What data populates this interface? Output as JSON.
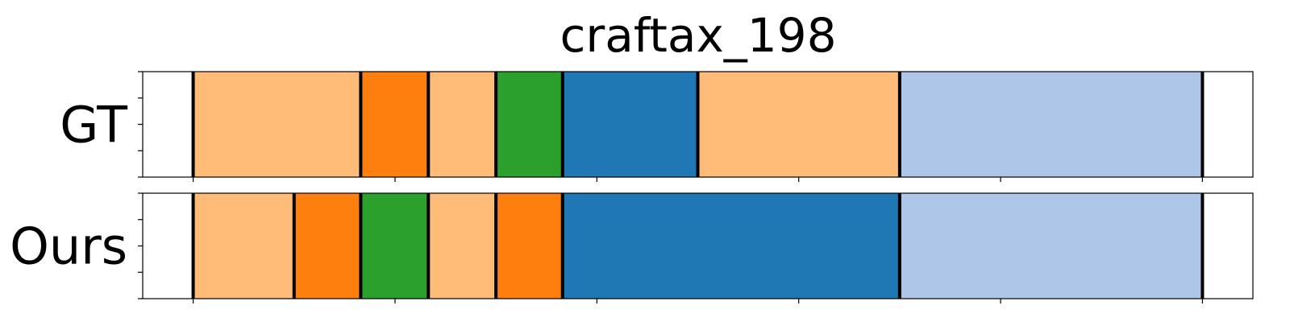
{
  "chart_data": {
    "type": "segmentation_timeline",
    "title": "craftax_198",
    "x_range": [
      0,
      1100
    ],
    "rows": [
      {
        "label": "GT",
        "segments": [
          {
            "start": 0,
            "end": 50,
            "color": "#ffffff"
          },
          {
            "start": 50,
            "end": 216,
            "color": "#ffbb78"
          },
          {
            "start": 216,
            "end": 283,
            "color": "#ff7f0e"
          },
          {
            "start": 283,
            "end": 350,
            "color": "#ffbb78"
          },
          {
            "start": 350,
            "end": 416,
            "color": "#2ca02c"
          },
          {
            "start": 416,
            "end": 550,
            "color": "#1f77b4"
          },
          {
            "start": 550,
            "end": 750,
            "color": "#ffbb78"
          },
          {
            "start": 750,
            "end": 1050,
            "color": "#aec7e8"
          },
          {
            "start": 1050,
            "end": 1100,
            "color": "#ffffff"
          }
        ],
        "boundaries": [
          50,
          216,
          283,
          350,
          416,
          550,
          750,
          1050
        ]
      },
      {
        "label": "Ours",
        "segments": [
          {
            "start": 0,
            "end": 50,
            "color": "#ffffff"
          },
          {
            "start": 50,
            "end": 150,
            "color": "#ffbb78"
          },
          {
            "start": 150,
            "end": 216,
            "color": "#ff7f0e"
          },
          {
            "start": 216,
            "end": 283,
            "color": "#2ca02c"
          },
          {
            "start": 283,
            "end": 350,
            "color": "#ffbb78"
          },
          {
            "start": 350,
            "end": 416,
            "color": "#ff7f0e"
          },
          {
            "start": 416,
            "end": 750,
            "color": "#1f77b4"
          },
          {
            "start": 750,
            "end": 1050,
            "color": "#aec7e8"
          },
          {
            "start": 1050,
            "end": 1100,
            "color": "#ffffff"
          }
        ],
        "boundaries": [
          50,
          150,
          216,
          283,
          350,
          416,
          750,
          1050
        ]
      }
    ],
    "x_ticks": [
      50,
      250,
      450,
      650,
      850,
      1050
    ],
    "y_ticks_count": 5,
    "tick_labels_visible": false,
    "grid": false
  }
}
